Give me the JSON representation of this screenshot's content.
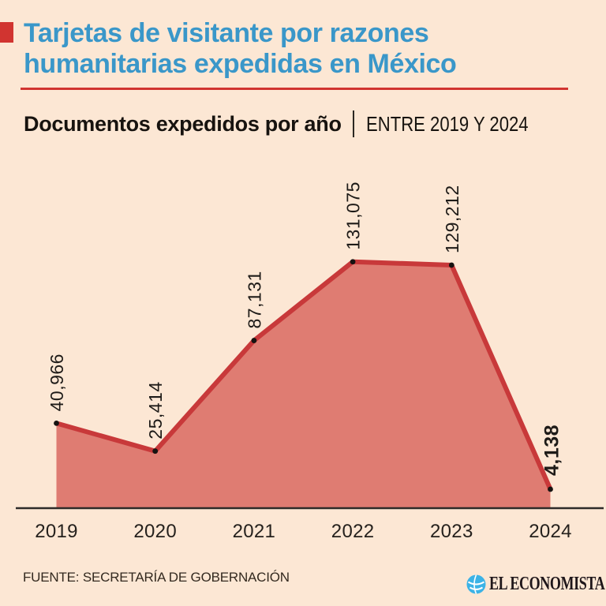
{
  "colors": {
    "background": "#fce7d4",
    "accent_red": "#d13430",
    "line_red": "#c8393a",
    "area_fill": "#df7c72",
    "title_blue": "#3a97c9",
    "ink": "#1e1b18",
    "logo_blue": "#3cb3e6"
  },
  "header": {
    "title_line1": "Tarjetas de visitante por razones",
    "title_line2": "humanitarias expedidas en México",
    "subtitle_left": "Documentos expedidos por año",
    "subtitle_right": "ENTRE 2019 Y 2024"
  },
  "chart_data": {
    "type": "area",
    "title": "Tarjetas de visitante por razones humanitarias expedidas en México",
    "subtitle": "Documentos expedidos por año — ENTRE 2019 Y 2024",
    "categories": [
      "2019",
      "2020",
      "2021",
      "2022",
      "2023",
      "2024"
    ],
    "values": [
      40966,
      25414,
      87131,
      131075,
      129212,
      4138
    ],
    "point_labels": [
      "40,966",
      "25,414",
      "87,131",
      "131,075",
      "129,212",
      "4,138"
    ],
    "emphasized_point": "2024",
    "grid": false,
    "legend": false,
    "y_axis_labels_visible": false,
    "label_rotation_deg": -90
  },
  "footer": {
    "source": "FUENTE: SECRETARÍA DE GOBERNACIÓN",
    "brand": "EL ECONOMISTA"
  }
}
